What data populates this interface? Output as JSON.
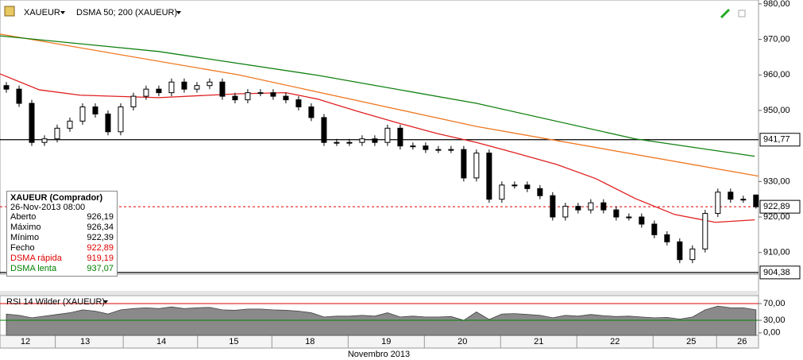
{
  "header": {
    "symbol": "XAUEUR",
    "indicator": "DSMA 50; 200 (XAUEUR)"
  },
  "info_box": {
    "title": "XAUEUR (Comprador)",
    "date": "26-Nov-2013 08:00",
    "rows": [
      [
        "Aberto",
        "926,19"
      ],
      [
        "Máximo",
        "926,34"
      ],
      [
        "Mínimo",
        "922,39"
      ],
      [
        "Fecho",
        "922,89"
      ],
      [
        "DSMA rápida",
        "919,19"
      ],
      [
        "DSMA lenta",
        "937,07"
      ]
    ]
  },
  "chart_data": [
    {
      "type": "candlestick",
      "ylim": [
        903.9,
        981.1
      ],
      "xlim": [
        -0.5,
        59.2
      ],
      "yticks": [
        {
          "value": 980,
          "label": "980,00"
        },
        {
          "value": 970,
          "label": "970,00"
        },
        {
          "value": 960,
          "label": "960,00"
        },
        {
          "value": 950,
          "label": "950,00"
        },
        {
          "value": 930,
          "label": "930,00"
        },
        {
          "value": 920,
          "label": "920,00"
        },
        {
          "value": 910,
          "label": "910,00"
        }
      ],
      "xticks": [
        {
          "value": 1.5,
          "label": "12"
        },
        {
          "value": 6.2,
          "label": "13"
        },
        {
          "value": 12.2,
          "label": "14"
        },
        {
          "value": 17.9,
          "label": "15"
        },
        {
          "value": 23.9,
          "label": "18"
        },
        {
          "value": 29.9,
          "label": "19"
        },
        {
          "value": 35.9,
          "label": "20"
        },
        {
          "value": 41.9,
          "label": "21"
        },
        {
          "value": 47.9,
          "label": "22"
        },
        {
          "value": 53.9,
          "label": "25"
        },
        {
          "value": 57.9,
          "label": "26"
        }
      ],
      "x_label": "Novembro 2013",
      "up_color": "#ffffff",
      "down_color": "#000000",
      "open": [
        957,
        956,
        952,
        941,
        942,
        945,
        947,
        951,
        949,
        944,
        951,
        954,
        956,
        955,
        958,
        956,
        957,
        958,
        954,
        953,
        955,
        955,
        954,
        953,
        951,
        948,
        941,
        941,
        941,
        942,
        941,
        945,
        940,
        940,
        939,
        939,
        939,
        931,
        938,
        925,
        929,
        929,
        928,
        926,
        920,
        923,
        922,
        924,
        922,
        920,
        920,
        918,
        915,
        913,
        908,
        911,
        921,
        927,
        925,
        926.19
      ],
      "high": [
        958,
        957,
        953,
        943,
        946,
        948,
        952,
        952,
        950,
        952,
        955,
        957,
        957,
        959,
        959,
        958,
        959,
        959,
        955,
        956,
        956,
        956,
        955,
        954,
        952,
        949,
        942,
        942,
        943,
        943,
        946,
        946,
        941,
        941,
        940,
        940,
        940,
        939,
        939,
        930,
        930,
        930,
        929,
        927,
        924,
        924,
        925,
        925,
        923,
        921,
        921,
        919,
        916,
        914,
        912,
        922,
        928,
        928,
        926,
        926.34
      ],
      "low": [
        955,
        951,
        940,
        940,
        941,
        944,
        946,
        948,
        943,
        943,
        950,
        953,
        954,
        954,
        955,
        955,
        956,
        953,
        952,
        952,
        954,
        953,
        952,
        950,
        947,
        940,
        940,
        940,
        940,
        940,
        940,
        939,
        939,
        938,
        938,
        938,
        930,
        930,
        924,
        924,
        928,
        927,
        925,
        919,
        919,
        921,
        921,
        921,
        919,
        919,
        917,
        914,
        912,
        907,
        907,
        910,
        920,
        924,
        924,
        922.39
      ],
      "close": [
        956,
        952,
        941,
        942,
        945,
        947,
        951,
        949,
        944,
        951,
        954,
        956,
        955,
        958,
        956,
        957,
        958,
        954,
        953,
        955,
        955,
        954,
        953,
        951,
        948,
        941,
        941,
        941,
        942,
        941,
        945,
        940,
        940,
        939,
        939,
        939,
        931,
        938,
        925,
        929,
        929,
        928,
        926,
        920,
        923,
        922,
        924,
        922,
        920,
        920,
        918,
        915,
        913,
        908,
        911,
        921,
        927,
        925,
        925,
        922.89
      ],
      "series": [
        {
          "color": "#e02020",
          "x": [
            -0.5,
            2.6,
            5.8,
            12,
            18.3,
            22,
            24.5,
            27.6,
            30.8,
            33.9,
            37,
            40.1,
            43.3,
            46.4,
            49.5,
            52.6,
            55.8,
            58.9
          ],
          "values": [
            960.3,
            955.8,
            954.3,
            953.6,
            954.7,
            955,
            953.2,
            949.8,
            946.5,
            943.5,
            941,
            938,
            934.8,
            930.8,
            925.2,
            920.7,
            918.5,
            919.2
          ]
        },
        {
          "color": "#f07820",
          "x": [
            -0.5,
            18.3,
            37,
            59.2
          ],
          "values": [
            971.5,
            960,
            945.5,
            931.5
          ]
        },
        {
          "color": "#108010",
          "x": [
            -0.5,
            12,
            24.5,
            37,
            49.5,
            58.9
          ],
          "values": [
            971,
            966.6,
            959.9,
            952,
            942,
            937.1
          ]
        }
      ],
      "levels": [
        {
          "value": 941.77,
          "label": "941,77",
          "color": "#000000",
          "dashed": false
        },
        {
          "value": 922.89,
          "label": "922,89",
          "color": "#e00000",
          "dashed": true
        },
        {
          "value": 904.38,
          "label": "904,38",
          "color": "#000000",
          "dashed": false
        }
      ]
    },
    {
      "type": "area",
      "title": "RSI 14 Wilder (XAUEUR)",
      "ylim": [
        -6,
        89
      ],
      "xlim": [
        -0.5,
        59.2
      ],
      "color": "#8a8a8a",
      "yticks": [
        {
          "value": 70,
          "label": "70,00"
        },
        {
          "value": 30,
          "label": "30,00"
        },
        {
          "value": 0,
          "label": "0,00"
        }
      ],
      "levels": [
        {
          "value": 70,
          "color": "#e00000"
        },
        {
          "value": 30,
          "color": "#008000"
        }
      ],
      "values": [
        45,
        42,
        36,
        40,
        44,
        48,
        55,
        52,
        45,
        55,
        58,
        60,
        58,
        62,
        58,
        60,
        61,
        55,
        54,
        57,
        57,
        55,
        54,
        52,
        48,
        38,
        40,
        40,
        42,
        40,
        48,
        38,
        40,
        38,
        38,
        39,
        30,
        50,
        32,
        45,
        46,
        44,
        42,
        36,
        42,
        40,
        44,
        41,
        39,
        40,
        38,
        36,
        37,
        33,
        38,
        55,
        64,
        60,
        60,
        55
      ]
    }
  ]
}
